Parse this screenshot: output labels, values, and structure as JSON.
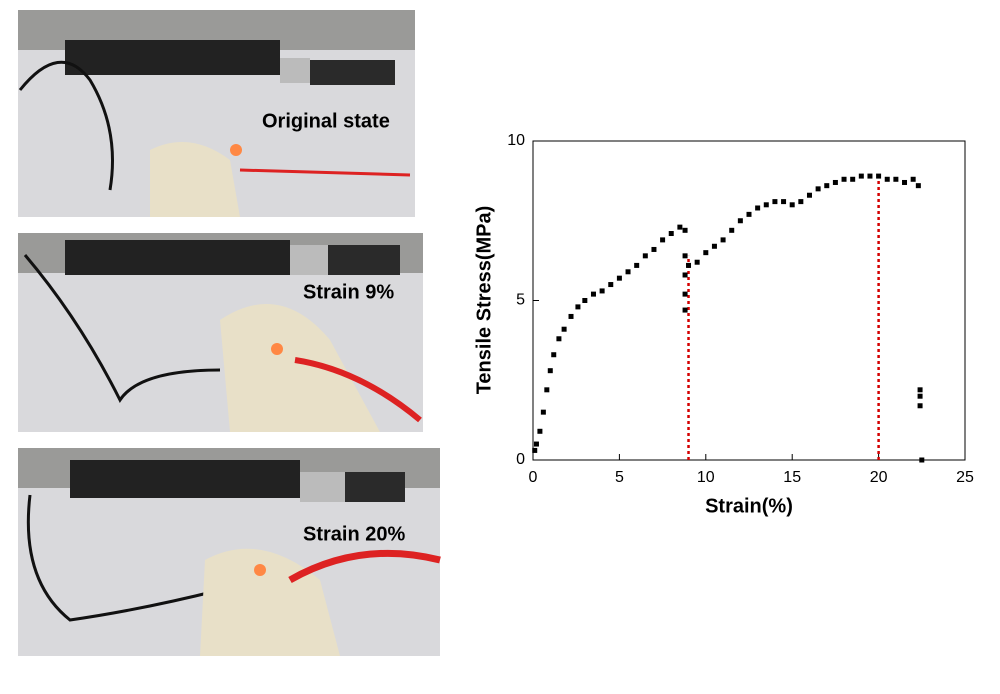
{
  "panels": [
    {
      "label": "Original state"
    },
    {
      "label": "Strain 9%"
    },
    {
      "label": "Strain 20%"
    }
  ],
  "chart_data": {
    "type": "scatter",
    "x_label": "Strain(%)",
    "y_label": "Tensile Stress(MPa)",
    "xlim": [
      0,
      25
    ],
    "xticks": [
      0,
      5,
      10,
      15,
      20,
      25
    ],
    "ylim": [
      0,
      10
    ],
    "yticks": [
      0,
      5,
      10
    ],
    "series": [
      {
        "name": null,
        "color": "#000000",
        "x": [
          0.1,
          0.2,
          0.4,
          0.6,
          0.8,
          1.0,
          1.2,
          1.5,
          1.8,
          2.2,
          2.6,
          3.0,
          3.5,
          4.0,
          4.5,
          5.0,
          5.5,
          6.0,
          6.5,
          7.0,
          7.5,
          8.0,
          8.5,
          8.8,
          8.8,
          8.8,
          8.8,
          8.8,
          9.0,
          9.5,
          10.0,
          10.5,
          11.0,
          11.5,
          12.0,
          12.5,
          13.0,
          13.5,
          14.0,
          14.5,
          15.0,
          15.5,
          16.0,
          16.5,
          17.0,
          17.5,
          18.0,
          18.5,
          19.0,
          19.5,
          20.0,
          20.5,
          21.0,
          21.5,
          22.0,
          22.3,
          22.4,
          22.4,
          22.4,
          22.5
        ],
        "values": [
          0.3,
          0.5,
          0.9,
          1.5,
          2.2,
          2.8,
          3.3,
          3.8,
          4.1,
          4.5,
          4.8,
          5.0,
          5.2,
          5.3,
          5.5,
          5.7,
          5.9,
          6.1,
          6.4,
          6.6,
          6.9,
          7.1,
          7.3,
          7.2,
          6.4,
          5.8,
          5.2,
          4.7,
          6.1,
          6.2,
          6.5,
          6.7,
          6.9,
          7.2,
          7.5,
          7.7,
          7.9,
          8.0,
          8.1,
          8.1,
          8.0,
          8.1,
          8.3,
          8.5,
          8.6,
          8.7,
          8.8,
          8.8,
          8.9,
          8.9,
          8.9,
          8.8,
          8.8,
          8.7,
          8.8,
          8.6,
          2.2,
          2.0,
          1.7,
          0
        ]
      }
    ],
    "vlines": {
      "color": "#d40000",
      "x": [
        9,
        20
      ],
      "values": [
        6.4,
        8.9
      ]
    }
  }
}
